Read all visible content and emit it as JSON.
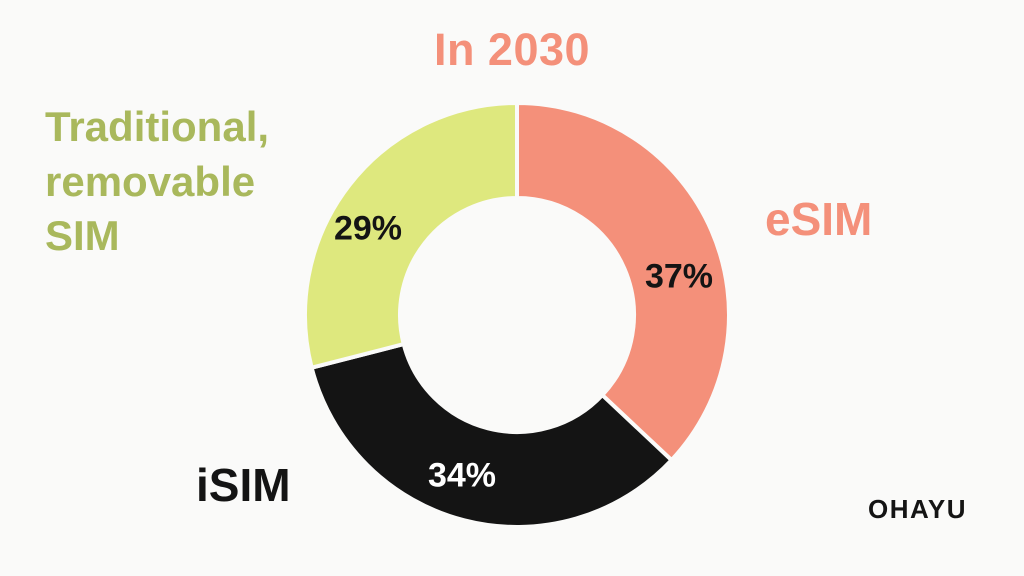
{
  "page": {
    "background": "#FAFAF9",
    "brand": "OHAYU"
  },
  "chart_data": {
    "type": "pie",
    "variant": "donut",
    "title": "In 2030",
    "title_color": "#F4907A",
    "unit": "%",
    "start_angle_deg": 0,
    "direction": "clockwise",
    "inner_radius_ratio": 0.55,
    "gap_color": "#FAFAF9",
    "legend_position": "around",
    "series": [
      {
        "id": "esim",
        "label": "eSIM",
        "value": 37,
        "pct_label": "37%",
        "color": "#F4907A",
        "pct_text_color": "#141414",
        "callout_color": "#F4907A"
      },
      {
        "id": "isim",
        "label": "iSIM",
        "value": 34,
        "pct_label": "34%",
        "color": "#141414",
        "pct_text_color": "#FFFFFF",
        "callout_color": "#141414"
      },
      {
        "id": "traditional",
        "label": "Traditional, removable SIM",
        "value": 29,
        "pct_label": "29%",
        "color": "#DEE87E",
        "pct_text_color": "#141414",
        "callout_color": "#A9B85C"
      }
    ]
  }
}
